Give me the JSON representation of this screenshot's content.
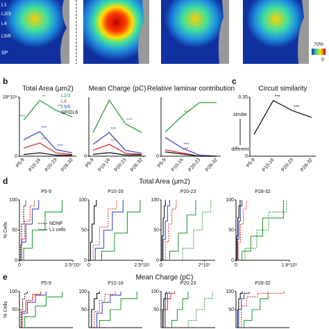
{
  "heatmap": {
    "layers": [
      "L1",
      "L2/3",
      "L4",
      "L5/6",
      "SP"
    ],
    "colorbar": [
      "70%",
      "0"
    ]
  },
  "panels": {
    "b": "b",
    "c": "c",
    "d": "d",
    "e": "e"
  },
  "row_titles": {
    "d": "Total Area (μm2)",
    "e": "Mean Charge (pC)"
  },
  "legend_d": [
    "NDNF",
    "L1 cells"
  ],
  "similarity_axis": {
    "top": "similar",
    "bottom": "different"
  },
  "chart_data": [
    {
      "type": "line",
      "title": "Total Area (μm2)",
      "categories": [
        "P5-9",
        "P10-16",
        "P20-23",
        "P28-32"
      ],
      "ylim": [
        0,
        18
      ],
      "yticks": [
        0,
        {
          "value": 18,
          "label": "18*10⁴"
        }
      ],
      "series": [
        {
          "name": "L2/3",
          "color": "#2a9d3a",
          "values": [
            11,
            17,
            14,
            12
          ],
          "stars": [
            "***",
            "**",
            "***",
            null
          ]
        },
        {
          "name": "L4",
          "color": "#e0302a",
          "values": [
            2.5,
            4,
            1,
            0.5
          ],
          "stars": [
            null,
            "***",
            null,
            null
          ]
        },
        {
          "name": "L5/6",
          "color": "#3a4fc4",
          "values": [
            5,
            7.5,
            2,
            1
          ],
          "stars": [
            null,
            "***",
            "***",
            null
          ]
        },
        {
          "name": "SP/DL6",
          "color": "#111111",
          "values": [
            0.5,
            1,
            0.3,
            0.3
          ],
          "stars": [
            null,
            null,
            null,
            null
          ]
        }
      ]
    },
    {
      "type": "line",
      "title": "Mean Charge (pC)",
      "categories": [
        "P5-9",
        "P10-16",
        "P20-23",
        "P28-32"
      ],
      "ylim": [
        0,
        10
      ],
      "yticks": [
        0
      ],
      "series": [
        {
          "color": "#2a9d3a",
          "values": [
            4,
            9.5,
            5.5,
            4
          ],
          "stars": [
            null,
            null,
            "***",
            null
          ]
        },
        {
          "color": "#e0302a",
          "values": [
            1,
            2,
            0.5,
            0.3
          ],
          "stars": [
            null,
            "***",
            null,
            null
          ]
        },
        {
          "color": "#3a4fc4",
          "values": [
            2,
            4,
            1,
            0.5
          ],
          "stars": [
            null,
            "***",
            null,
            null
          ]
        },
        {
          "color": "#111111",
          "values": [
            0.3,
            0.6,
            0.2,
            0.2
          ],
          "stars": [
            null,
            null,
            null,
            null
          ]
        }
      ]
    },
    {
      "type": "line",
      "title": "Relative laminar contribution",
      "categories": [
        "P5-9",
        "P10-16",
        "P20-23",
        "P28-32"
      ],
      "ylim": [
        0,
        1.1
      ],
      "yticks": [
        0
      ],
      "series": [
        {
          "color": "#2a9d3a",
          "values": [
            0.45,
            0.75,
            1,
            1
          ],
          "stars": [
            null,
            "***",
            null,
            null
          ]
        },
        {
          "color": "#e0302a",
          "values": [
            0.12,
            0.06,
            0,
            0
          ],
          "stars": [
            null,
            "**",
            null,
            null
          ]
        },
        {
          "color": "#3a4fc4",
          "values": [
            0.35,
            0.15,
            0.02,
            0
          ],
          "stars": [
            null,
            "***",
            null,
            null
          ]
        },
        {
          "color": "#111111",
          "values": [
            0.08,
            0.04,
            0,
            0
          ],
          "stars": [
            null,
            null,
            null,
            null
          ]
        }
      ]
    },
    {
      "type": "line",
      "title": "Circuit similarity",
      "categories": [
        "P5-9",
        "P10-16",
        "P20-23",
        "P28-32"
      ],
      "ylim": [
        0,
        0.35
      ],
      "yticks": [
        0,
        0.35
      ],
      "series": [
        {
          "color": "#111111",
          "values": [
            0.13,
            0.33,
            0.27,
            0.23
          ],
          "stars": [
            null,
            "***",
            "***",
            null
          ]
        }
      ]
    },
    {
      "type": "step",
      "title": "P5-9",
      "ylabel": "% Cells",
      "xlim": [
        0,
        250000
      ],
      "xticks": [
        0,
        {
          "value": 250000,
          "label": "2.5*10⁵"
        }
      ],
      "ylim": [
        0,
        100
      ],
      "yticks": [
        0,
        50,
        100
      ],
      "series": [
        {
          "color": "#2a9d3a",
          "dash": false,
          "x": [
            20000,
            60000,
            120000,
            200000
          ],
          "values": [
            20,
            50,
            80,
            100
          ]
        },
        {
          "color": "#3a4fc4",
          "dash": false,
          "x": [
            10000,
            30000,
            60000,
            90000
          ],
          "values": [
            30,
            60,
            85,
            100
          ]
        },
        {
          "color": "#e0302a",
          "dash": true,
          "x": [
            10000,
            25000,
            50000,
            70000
          ],
          "values": [
            35,
            65,
            90,
            100
          ]
        },
        {
          "color": "#111111",
          "dash": true,
          "x": [
            5000,
            10000,
            20000,
            30000
          ],
          "values": [
            25,
            60,
            90,
            100
          ]
        }
      ]
    },
    {
      "type": "step",
      "title": "P10-16",
      "xlim": [
        0,
        250000
      ],
      "xticks": [
        0,
        {
          "value": 250000,
          "label": "2.5*10⁵"
        }
      ],
      "ylim": [
        0,
        100
      ],
      "yticks": [
        0,
        50,
        100
      ],
      "series": [
        {
          "color": "#2a9d3a",
          "dash": false,
          "x": [
            60000,
            120000,
            180000,
            240000
          ],
          "values": [
            15,
            45,
            80,
            100
          ]
        },
        {
          "color": "#3a4fc4",
          "dash": false,
          "x": [
            30000,
            70000,
            110000,
            160000
          ],
          "values": [
            20,
            50,
            80,
            100
          ]
        },
        {
          "color": "#e0302a",
          "dash": true,
          "x": [
            20000,
            50000,
            90000,
            130000
          ],
          "values": [
            25,
            55,
            85,
            100
          ]
        },
        {
          "color": "#111111",
          "dash": false,
          "x": [
            8000,
            15000,
            25000,
            35000
          ],
          "values": [
            30,
            60,
            90,
            100
          ]
        }
      ]
    },
    {
      "type": "step",
      "title": "P20-23",
      "xlim": [
        0,
        250000
      ],
      "xticks": [
        0,
        {
          "value": 200000,
          "label": "2*10⁵"
        }
      ],
      "ylim": [
        0,
        100
      ],
      "yticks": [
        0,
        50,
        100
      ],
      "series": [
        {
          "color": "#2a9d3a",
          "dash": true,
          "x": [
            100000,
            150000,
            190000,
            230000
          ],
          "values": [
            20,
            50,
            80,
            100
          ]
        },
        {
          "color": "#2a9d3a",
          "dash": false,
          "x": [
            40000,
            80000,
            120000,
            160000
          ],
          "values": [
            15,
            45,
            75,
            100
          ]
        },
        {
          "color": "#e0302a",
          "dash": true,
          "x": [
            20000,
            35000,
            50000,
            70000
          ],
          "values": [
            30,
            60,
            85,
            100
          ]
        },
        {
          "color": "#3a4fc4",
          "dash": false,
          "x": [
            10000,
            20000,
            30000,
            40000
          ],
          "values": [
            35,
            65,
            90,
            100
          ]
        },
        {
          "color": "#111111",
          "dash": false,
          "x": [
            5000,
            10000,
            15000,
            20000
          ],
          "values": [
            40,
            70,
            90,
            100
          ]
        }
      ]
    },
    {
      "type": "step",
      "title": "P28-32",
      "xlim": [
        0,
        180000
      ],
      "xticks": [
        0,
        {
          "value": 180000,
          "label": "1.8*10⁵"
        }
      ],
      "ylim": [
        0,
        100
      ],
      "yticks": [
        0,
        50,
        100
      ],
      "series": [
        {
          "color": "#2a9d3a",
          "dash": true,
          "x": [
            30000,
            70000,
            110000,
            170000
          ],
          "values": [
            20,
            50,
            80,
            100
          ]
        },
        {
          "color": "#2a9d3a",
          "dash": false,
          "x": [
            20000,
            50000,
            90000,
            160000
          ],
          "values": [
            15,
            40,
            70,
            100
          ]
        },
        {
          "color": "#e0302a",
          "dash": true,
          "x": [
            8000,
            15000,
            25000,
            35000
          ],
          "values": [
            30,
            60,
            85,
            100
          ]
        },
        {
          "color": "#3a4fc4",
          "dash": false,
          "x": [
            5000,
            10000,
            15000,
            20000
          ],
          "values": [
            35,
            65,
            90,
            100
          ]
        },
        {
          "color": "#111111",
          "dash": false,
          "x": [
            3000,
            6000,
            10000,
            14000
          ],
          "values": [
            40,
            70,
            90,
            100
          ]
        }
      ]
    },
    {
      "type": "step",
      "title": "P5-9",
      "ylabel": "% Cells",
      "xlim": [
        0,
        10
      ],
      "ylim": [
        0,
        100
      ],
      "yticks": [
        50,
        100
      ],
      "series": [
        {
          "color": "#2a9d3a",
          "dash": false,
          "x": [
            1,
            3,
            5,
            8
          ],
          "values": [
            30,
            60,
            85,
            100
          ]
        },
        {
          "color": "#3a4fc4",
          "dash": false,
          "x": [
            0.5,
            1.5,
            3,
            5
          ],
          "values": [
            40,
            70,
            90,
            100
          ]
        },
        {
          "color": "#e0302a",
          "dash": false,
          "x": [
            0.5,
            1.2,
            2.5,
            4
          ],
          "values": [
            45,
            75,
            92,
            100
          ]
        },
        {
          "color": "#111111",
          "dash": true,
          "x": [
            0.3,
            0.6,
            1,
            1.5
          ],
          "values": [
            50,
            80,
            95,
            100
          ]
        }
      ]
    },
    {
      "type": "step",
      "title": "P10-16",
      "xlim": [
        0,
        10
      ],
      "ylim": [
        0,
        100
      ],
      "yticks": [
        50,
        100
      ],
      "series": [
        {
          "color": "#2a9d3a",
          "dash": false,
          "x": [
            2,
            4,
            6,
            9
          ],
          "values": [
            20,
            50,
            80,
            100
          ]
        },
        {
          "color": "#3a4fc4",
          "dash": false,
          "x": [
            1.5,
            2.5,
            4,
            6
          ],
          "values": [
            40,
            70,
            90,
            100
          ]
        },
        {
          "color": "#e0302a",
          "dash": true,
          "x": [
            1,
            2,
            3,
            5
          ],
          "values": [
            45,
            75,
            92,
            100
          ]
        },
        {
          "color": "#111111",
          "dash": false,
          "x": [
            0.5,
            1,
            1.5,
            2
          ],
          "values": [
            50,
            80,
            95,
            100
          ]
        }
      ]
    },
    {
      "type": "step",
      "title": "P20-23",
      "xlim": [
        0,
        10
      ],
      "ylim": [
        0,
        100
      ],
      "yticks": [
        50,
        100
      ],
      "series": [
        {
          "color": "#2a9d3a",
          "dash": true,
          "x": [
            5,
            6.5,
            8,
            9.5
          ],
          "values": [
            20,
            50,
            80,
            100
          ]
        },
        {
          "color": "#2a9d3a",
          "dash": false,
          "x": [
            2,
            3,
            4,
            5
          ],
          "values": [
            20,
            50,
            80,
            100
          ]
        },
        {
          "color": "#e0302a",
          "dash": false,
          "x": [
            0.8,
            1.2,
            1.8,
            2.5
          ],
          "values": [
            50,
            80,
            95,
            100
          ]
        },
        {
          "color": "#3a4fc4",
          "dash": false,
          "x": [
            0.5,
            0.8,
            1.2,
            1.6
          ],
          "values": [
            50,
            80,
            95,
            100
          ]
        },
        {
          "color": "#111111",
          "dash": false,
          "x": [
            0.3,
            0.5,
            0.8,
            1
          ],
          "values": [
            50,
            80,
            95,
            100
          ]
        }
      ]
    },
    {
      "type": "step",
      "title": "P28-32",
      "xlim": [
        0,
        10
      ],
      "ylim": [
        0,
        100
      ],
      "yticks": [
        50,
        100
      ],
      "series": [
        {
          "color": "#2a9d3a",
          "dash": false,
          "x": [
            1.5,
            3,
            4.5,
            6
          ],
          "values": [
            20,
            50,
            80,
            100
          ]
        },
        {
          "color": "#e0302a",
          "dash": true,
          "x": [
            1,
            2,
            4,
            9
          ],
          "values": [
            60,
            85,
            95,
            100
          ]
        },
        {
          "color": "#3a4fc4",
          "dash": false,
          "x": [
            0.5,
            1,
            1.5,
            2.5
          ],
          "values": [
            50,
            80,
            95,
            100
          ]
        },
        {
          "color": "#111111",
          "dash": false,
          "x": [
            0.3,
            0.5,
            0.8,
            1.2
          ],
          "values": [
            50,
            80,
            95,
            100
          ]
        }
      ]
    }
  ]
}
